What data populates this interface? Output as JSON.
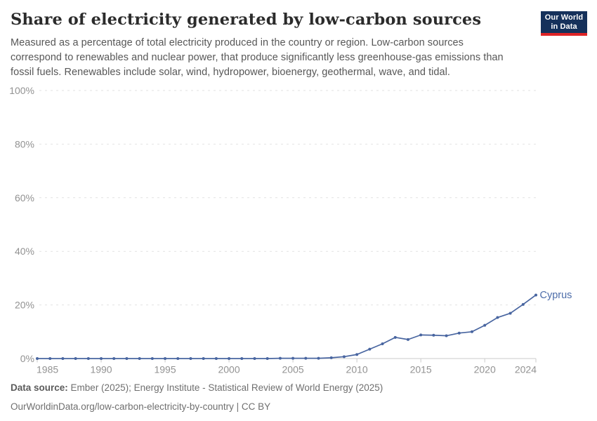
{
  "header": {
    "title": "Share of electricity generated by low-carbon sources",
    "subtitle": "Measured as a percentage of total electricity produced in the country or region. Low-carbon sources correspond to renewables and nuclear power, that produce significantly less greenhouse-gas emissions than fossil fuels. Renewables include solar, wind, hydropower, bioenergy, geothermal, wave, and tidal.",
    "logo": {
      "line1": "Our World",
      "line2": "in Data",
      "bg_color": "#15315B",
      "accent_color": "#DE2426"
    }
  },
  "chart_data": {
    "type": "line",
    "title": "Share of electricity generated by low-carbon sources",
    "x": [
      1985,
      1986,
      1987,
      1988,
      1989,
      1990,
      1991,
      1992,
      1993,
      1994,
      1995,
      1996,
      1997,
      1998,
      1999,
      2000,
      2001,
      2002,
      2003,
      2004,
      2005,
      2006,
      2007,
      2008,
      2009,
      2010,
      2011,
      2012,
      2013,
      2014,
      2015,
      2016,
      2017,
      2018,
      2019,
      2020,
      2021,
      2022,
      2023,
      2024
    ],
    "series": [
      {
        "name": "Cyprus",
        "color": "#4865A0",
        "values": [
          0,
          0,
          0,
          0,
          0,
          0,
          0,
          0,
          0,
          0,
          0,
          0,
          0,
          0,
          0,
          0,
          0,
          0,
          0,
          0.1,
          0.1,
          0.1,
          0.1,
          0.3,
          0.7,
          1.5,
          3.5,
          5.5,
          7.9,
          7.1,
          8.8,
          8.7,
          8.5,
          9.5,
          10.0,
          12.4,
          15.3,
          16.9,
          20.2,
          23.7
        ]
      }
    ],
    "xlabel": "",
    "ylabel": "",
    "xlim": [
      1985,
      2024
    ],
    "ylim": [
      0,
      100
    ],
    "x_ticks": [
      1985,
      1990,
      1995,
      2000,
      2005,
      2010,
      2015,
      2020,
      2024
    ],
    "y_ticks": [
      0,
      20,
      40,
      60,
      80,
      100
    ],
    "y_tick_suffix": "%",
    "grid": "horizontal-dashed",
    "legend_position": "end-of-line-label",
    "end_label": "Cyprus",
    "colors": {
      "line": "#4865A0",
      "end_label": "#4C6CA9",
      "gridline": "#e2e2e2",
      "axis_line": "#cbcbcb",
      "tick_label": "#929292"
    }
  },
  "footer": {
    "source_label": "Data source:",
    "sources": "Ember (2025); Energy Institute - Statistical Review of World Energy (2025)",
    "note": "OurWorldinData.org/low-carbon-electricity-by-country | CC BY"
  }
}
